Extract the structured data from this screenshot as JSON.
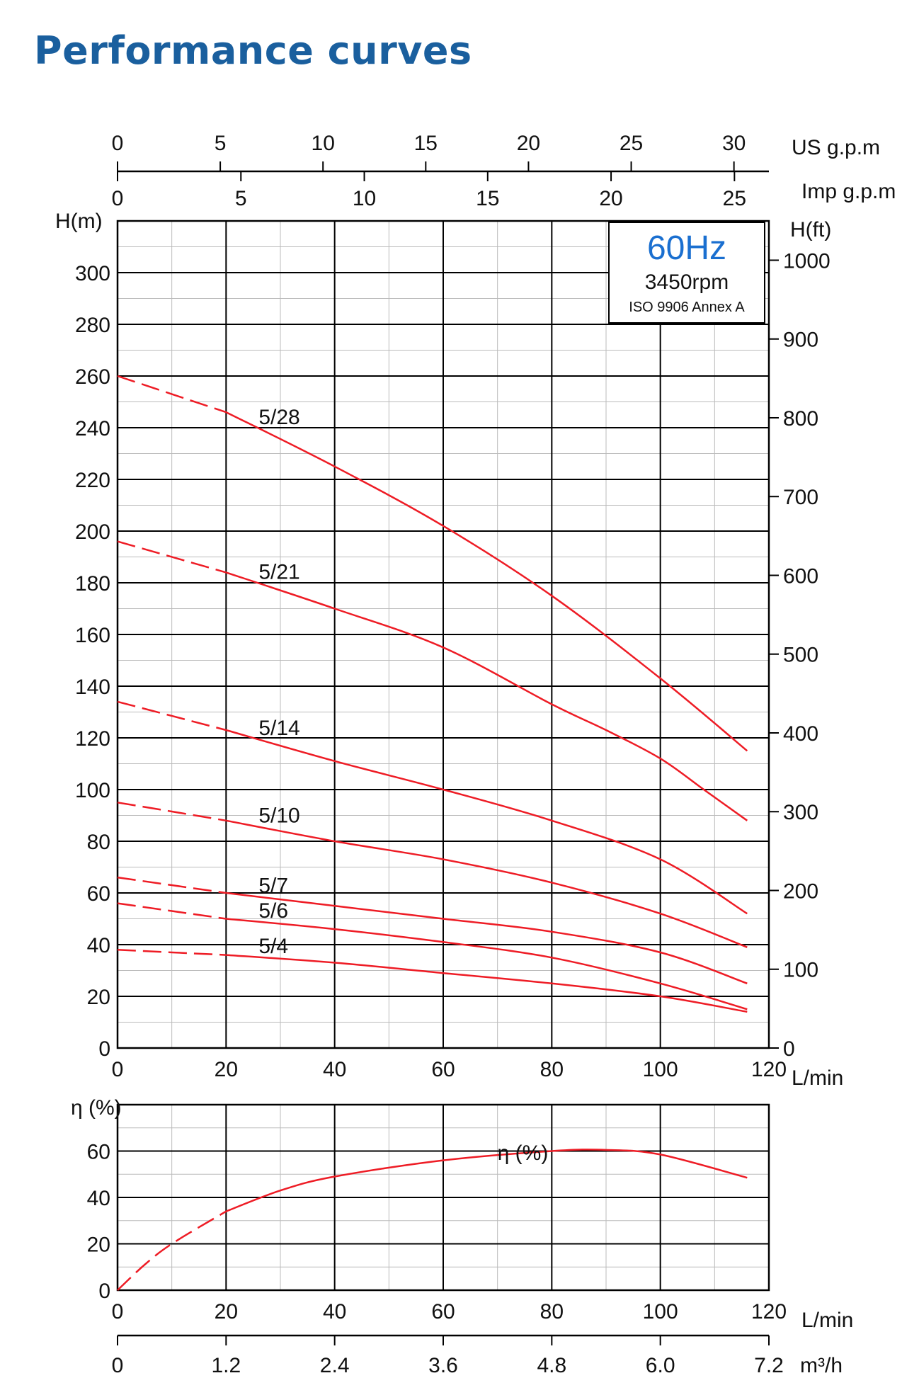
{
  "title": "Performance curves",
  "info_box": {
    "frequency": "60Hz",
    "speed": "3450rpm",
    "standard": "ISO 9906 Annex A"
  },
  "colors": {
    "curve": "#ee1c25",
    "title": "#1a5f9e",
    "frequency": "#1a6fd0",
    "grid_major": "#000000",
    "grid_minor": "#bbbbbb"
  },
  "chart_data": [
    {
      "type": "line",
      "name": "head",
      "xlabel": "L/min",
      "ylabel": "H(m)",
      "y2label": "H(ft)",
      "xlim": [
        0,
        120
      ],
      "ylim": [
        0,
        320
      ],
      "y2lim": [
        0,
        1050
      ],
      "x_ticks": [
        0,
        20,
        40,
        60,
        80,
        100,
        120
      ],
      "y_ticks": [
        0,
        20,
        40,
        60,
        80,
        100,
        120,
        140,
        160,
        180,
        200,
        220,
        240,
        260,
        280,
        300
      ],
      "y2_ticks": [
        0,
        100,
        200,
        300,
        400,
        500,
        600,
        700,
        800,
        900,
        1000
      ],
      "top_axes": [
        {
          "label": "US g.p.m",
          "ticks": [
            0,
            5,
            10,
            15,
            20,
            25,
            30
          ],
          "lim": [
            0,
            31.7
          ]
        },
        {
          "label": "Imp g.p.m",
          "ticks": [
            0,
            5,
            10,
            15,
            20,
            25
          ],
          "lim": [
            0,
            26.4
          ]
        }
      ],
      "grid": true,
      "dashed_until_x": 20,
      "series": [
        {
          "name": "5/28",
          "x": [
            0,
            20,
            40,
            60,
            80,
            100,
            116
          ],
          "y": [
            260,
            246,
            225,
            202,
            175,
            143,
            115
          ]
        },
        {
          "name": "5/21",
          "x": [
            0,
            20,
            40,
            60,
            80,
            90,
            100,
            108,
            116
          ],
          "y": [
            196,
            184,
            170,
            155,
            133,
            123,
            112,
            100,
            88
          ]
        },
        {
          "name": "5/14",
          "x": [
            0,
            20,
            40,
            60,
            80,
            100,
            116
          ],
          "y": [
            134,
            123,
            111,
            100,
            88,
            73,
            52
          ]
        },
        {
          "name": "5/10",
          "x": [
            0,
            20,
            40,
            60,
            80,
            100,
            116
          ],
          "y": [
            95,
            88,
            80,
            73,
            64,
            52,
            39
          ]
        },
        {
          "name": "5/7",
          "x": [
            0,
            20,
            40,
            60,
            80,
            100,
            116
          ],
          "y": [
            66,
            60,
            55,
            50,
            45,
            37,
            25
          ]
        },
        {
          "name": "5/6",
          "x": [
            0,
            20,
            40,
            60,
            80,
            100,
            116
          ],
          "y": [
            56,
            50,
            46,
            41,
            35,
            25,
            15
          ]
        },
        {
          "name": "5/4",
          "x": [
            0,
            20,
            40,
            60,
            80,
            100,
            116
          ],
          "y": [
            38,
            36,
            33,
            29,
            25,
            20,
            14
          ]
        }
      ]
    },
    {
      "type": "line",
      "name": "efficiency",
      "xlabel": "L/min",
      "ylabel": "η (%)",
      "xlim": [
        0,
        120
      ],
      "ylim": [
        0,
        80
      ],
      "x_ticks": [
        0,
        20,
        40,
        60,
        80,
        100,
        120
      ],
      "y_ticks": [
        0,
        20,
        40,
        60
      ],
      "bottom_axis": {
        "label": "m³/h",
        "ticks": [
          "0",
          "1.2",
          "2.4",
          "3.6",
          "4.8",
          "6.0",
          "7.2"
        ]
      },
      "grid": true,
      "dashed_until_x": 20,
      "series": [
        {
          "name": "η (%)",
          "x": [
            0,
            5,
            10,
            20,
            30,
            40,
            60,
            80,
            90,
            100,
            116
          ],
          "y": [
            0,
            11,
            20,
            34,
            43,
            49,
            56,
            60,
            60.5,
            58.5,
            48.5
          ]
        }
      ]
    }
  ]
}
